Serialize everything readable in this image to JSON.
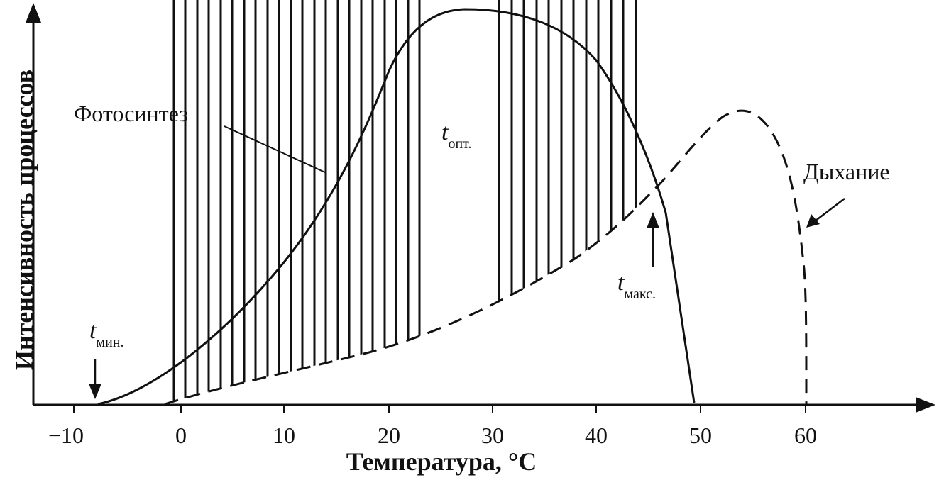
{
  "axes": {
    "x_label": "Температура, °C",
    "y_label": "Интенсивность процессов",
    "x_ticks": [
      "−10",
      "0",
      "10",
      "20",
      "30",
      "40",
      "50",
      "60"
    ]
  },
  "curves": {
    "photosynthesis": "Фотосинтез",
    "respiration": "Дыхание"
  },
  "points": {
    "t_min": {
      "var": "t",
      "sub": "мин."
    },
    "t_opt": {
      "var": "t",
      "sub": "опт."
    },
    "t_max": {
      "var": "t",
      "sub": "макс."
    }
  },
  "style": {
    "ink": "#111111",
    "background": "#ffffff"
  }
}
